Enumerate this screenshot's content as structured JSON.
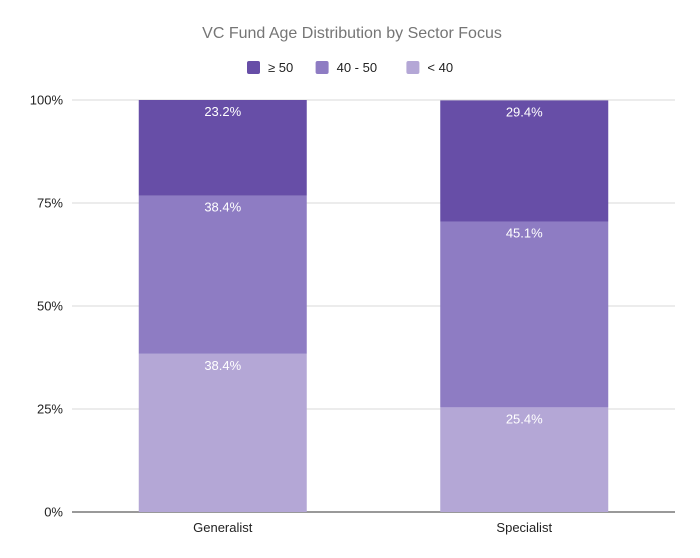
{
  "chart_data": {
    "type": "bar",
    "stacked": true,
    "normalized": true,
    "title": "VC Fund Age Distribution by Sector Focus",
    "xlabel": "",
    "ylabel": "",
    "categories": [
      "Generalist",
      "Specialist"
    ],
    "y_ticks": [
      "0%",
      "25%",
      "50%",
      "75%",
      "100%"
    ],
    "ylim": [
      0,
      100
    ],
    "grid": true,
    "legend_position": "top",
    "series": [
      {
        "name": "< 40",
        "color": "#b4a7d6",
        "values": [
          38.4,
          25.4
        ],
        "labels": [
          "38.4%",
          "25.4%"
        ]
      },
      {
        "name": "40 - 50",
        "color": "#8e7cc3",
        "values": [
          38.4,
          45.1
        ],
        "labels": [
          "38.4%",
          "45.1%"
        ]
      },
      {
        "name": "≥ 50",
        "color": "#674ea7",
        "values": [
          23.2,
          29.4
        ],
        "labels": [
          "23.2%",
          "29.4%"
        ]
      }
    ],
    "legend_order": [
      "≥ 50",
      "40 - 50",
      "< 40"
    ]
  }
}
